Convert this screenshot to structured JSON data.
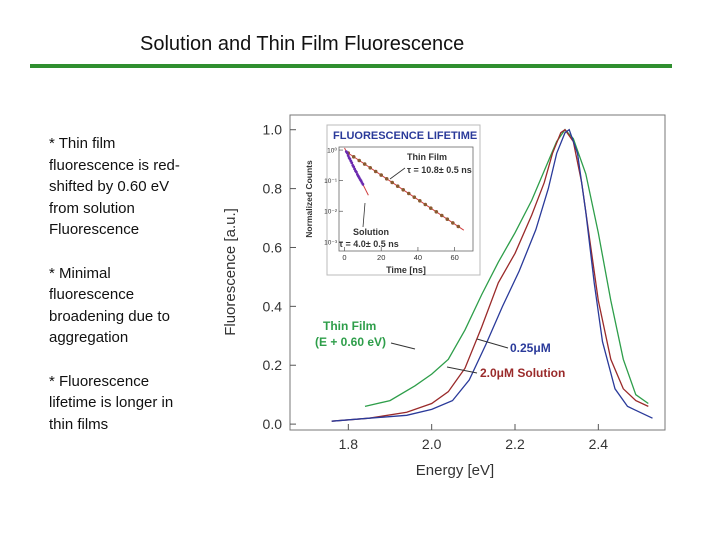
{
  "slide": {
    "title": "Solution and Thin Film Fluorescence",
    "accent_color": "#2f8f2f",
    "bullets": [
      "* Thin film fluorescence is red-shifted by 0.60 eV from solution Fluorescence",
      "* Minimal fluorescence broadening due to aggregation",
      "* Fluorescence lifetime is longer in thin films"
    ]
  },
  "chart_data": [
    {
      "type": "line",
      "xlabel": "Energy [eV]",
      "ylabel": "Fluorescence [a.u.]",
      "xlim": [
        1.66,
        2.56
      ],
      "ylim": [
        -0.02,
        1.05
      ],
      "xticks": [
        "1.8",
        "2.0",
        "2.2",
        "2.4"
      ],
      "yticks": [
        "0.0",
        "0.2",
        "0.4",
        "0.6",
        "0.8",
        "1.0"
      ],
      "series": [
        {
          "name": "Thin Film (E + 0.60 eV)",
          "label_line1": "Thin Film",
          "label_line2": "(E + 0.60 eV)",
          "color": "#2e9e4a",
          "x": [
            1.84,
            1.9,
            1.96,
            2.0,
            2.04,
            2.08,
            2.12,
            2.16,
            2.2,
            2.24,
            2.27,
            2.3,
            2.32,
            2.34,
            2.37,
            2.4,
            2.43,
            2.46,
            2.49,
            2.52
          ],
          "y": [
            0.06,
            0.08,
            0.13,
            0.17,
            0.22,
            0.32,
            0.44,
            0.55,
            0.65,
            0.76,
            0.86,
            0.96,
            1.0,
            0.97,
            0.85,
            0.65,
            0.42,
            0.22,
            0.1,
            0.07
          ]
        },
        {
          "name": "2.0μM Solution",
          "color": "#9a2a2a",
          "x": [
            1.76,
            1.85,
            1.94,
            2.0,
            2.04,
            2.08,
            2.12,
            2.16,
            2.2,
            2.24,
            2.27,
            2.29,
            2.31,
            2.32,
            2.34,
            2.36,
            2.38,
            2.4,
            2.43,
            2.46,
            2.49,
            2.52
          ],
          "y": [
            0.01,
            0.02,
            0.04,
            0.07,
            0.11,
            0.19,
            0.33,
            0.48,
            0.58,
            0.71,
            0.82,
            0.92,
            0.99,
            1.0,
            0.96,
            0.82,
            0.62,
            0.42,
            0.22,
            0.12,
            0.08,
            0.06
          ]
        },
        {
          "name": "0.25μM",
          "color": "#2a3a9a",
          "x": [
            1.76,
            1.85,
            1.94,
            2.0,
            2.05,
            2.09,
            2.13,
            2.17,
            2.21,
            2.25,
            2.28,
            2.3,
            2.32,
            2.33,
            2.35,
            2.37,
            2.39,
            2.41,
            2.44,
            2.47,
            2.5,
            2.53
          ],
          "y": [
            0.01,
            0.02,
            0.03,
            0.05,
            0.08,
            0.15,
            0.27,
            0.4,
            0.52,
            0.66,
            0.8,
            0.92,
            0.99,
            1.0,
            0.92,
            0.72,
            0.48,
            0.28,
            0.12,
            0.06,
            0.04,
            0.02
          ]
        }
      ],
      "annotations": [
        {
          "text": "0.25μM"
        },
        {
          "text": "2.0μM Solution"
        }
      ]
    },
    {
      "type": "scatter",
      "title": "FLUORESCENCE LIFETIME",
      "xlabel": "Time [ns]",
      "ylabel": "Normalized Counts",
      "xlim": [
        -3,
        70
      ],
      "xticks": [
        "0",
        "20",
        "40",
        "60"
      ],
      "yticks": [
        "10⁰",
        "10⁻¹",
        "10⁻²",
        "10⁻³"
      ],
      "log_ylim": [
        -3.3,
        0.1
      ],
      "series": [
        {
          "name": "Thin Film",
          "color": "#8a5a30",
          "x": [
            2,
            5,
            8,
            11,
            14,
            17,
            20,
            23,
            26,
            29,
            32,
            35,
            38,
            41,
            44,
            47,
            50,
            53,
            56,
            59,
            62
          ],
          "y": [
            -0.1,
            -0.22,
            -0.34,
            -0.46,
            -0.58,
            -0.7,
            -0.82,
            -0.94,
            -1.06,
            -1.18,
            -1.3,
            -1.42,
            -1.54,
            -1.66,
            -1.78,
            -1.9,
            -2.02,
            -2.14,
            -2.26,
            -2.38,
            -2.5
          ]
        },
        {
          "name": "Solution",
          "color": "#6a2ab0",
          "x": [
            1,
            1.5,
            2,
            2.5,
            3,
            3.5,
            4,
            4.5,
            5,
            5.5,
            6,
            6.5,
            7,
            7.5,
            8,
            8.5,
            9,
            9.5,
            10
          ],
          "y": [
            -0.05,
            -0.1,
            -0.18,
            -0.25,
            -0.3,
            -0.36,
            -0.42,
            -0.5,
            -0.55,
            -0.62,
            -0.68,
            -0.72,
            -0.8,
            -0.85,
            -0.9,
            -0.96,
            -1.0,
            -1.06,
            -1.12
          ]
        }
      ],
      "fit_color": "#d04040",
      "annotations": [
        {
          "text": "Thin Film"
        },
        {
          "text": "τ = 10.8± 0.5 ns"
        },
        {
          "text": "Solution"
        },
        {
          "text": "τ = 4.0± 0.5 ns"
        }
      ]
    }
  ]
}
